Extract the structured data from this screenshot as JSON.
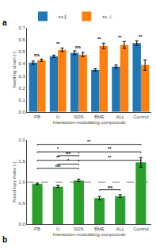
{
  "chart_data": [
    {
      "type": "bar",
      "xlabel": "Interaction-modulating compounds",
      "ylabel": "Swelling strain (-)",
      "categories": [
        "PB",
        "U",
        "SDS",
        "BME",
        "ALL",
        "Control"
      ],
      "series": [
        {
          "name": "εs,∥",
          "values": [
            0.41,
            0.463,
            0.492,
            0.35,
            0.377,
            0.572
          ],
          "errors": [
            0.013,
            0.01,
            0.016,
            0.01,
            0.013,
            0.02
          ]
        },
        {
          "name": "εs,⊥",
          "values": [
            0.43,
            0.517,
            0.477,
            0.55,
            0.558,
            0.39
          ],
          "errors": [
            0.01,
            0.015,
            0.018,
            0.022,
            0.028,
            0.043
          ]
        }
      ],
      "ylim": [
        0.0,
        0.7
      ],
      "yticks": [
        {
          "value": 0.0,
          "label": "0.0"
        },
        0.1,
        0.2,
        0.3,
        0.4,
        0.5,
        0.6,
        0.7
      ],
      "grid": false,
      "legend": "upper left",
      "annotations": [
        {
          "category": "PB",
          "text": "ns"
        },
        {
          "category": "U",
          "text": "**"
        },
        {
          "category": "SDS",
          "text": "ns"
        },
        {
          "category": "BME",
          "text": "**"
        },
        {
          "category": "ALL",
          "text": "**"
        },
        {
          "category": "Control",
          "text": "**"
        }
      ],
      "panel_label": "a"
    },
    {
      "type": "bar",
      "xlabel": "Interaction-modulating compounds",
      "ylabel": "Anisotropy index (-)",
      "categories": [
        "PB",
        "U",
        "SDS",
        "BME",
        "ALL",
        "Control"
      ],
      "values": [
        0.96,
        0.895,
        1.04,
        0.62,
        0.665,
        1.47
      ],
      "errors": [
        0.022,
        0.028,
        0.032,
        0.038,
        0.038,
        0.115
      ],
      "ylim": [
        0.0,
        2.0
      ],
      "yticks": [
        {
          "value": 0.0,
          "label": "0.0"
        },
        0.5,
        {
          "value": 1.0,
          "label": "1.0"
        },
        1.5,
        {
          "value": 2.0,
          "label": "2.0"
        }
      ],
      "grid": false,
      "reference_lines": [
        {
          "y": 1.0,
          "line_style": "dashed"
        }
      ],
      "brackets": [
        {
          "x1": "PB",
          "x2": "Control",
          "y": 1.9,
          "label": "**"
        },
        {
          "x1": "PB",
          "x2": "SDS",
          "y": 1.72,
          "label": "*"
        },
        {
          "x1": "U",
          "x2": "SDS",
          "y": 1.63,
          "label": "ns"
        },
        {
          "x1": "SDS",
          "x2": "Control",
          "y": 1.72,
          "label": "**"
        },
        {
          "x1": "PB",
          "x2": "SDS",
          "y": 1.52,
          "label": "**"
        },
        {
          "x1": "U",
          "x2": "SDS",
          "y": 1.43,
          "label": "*"
        },
        {
          "x1": "SDS",
          "x2": "Control",
          "y": 1.52,
          "label": "**"
        },
        {
          "x1": "PB",
          "x2": "SDS",
          "y": 1.33,
          "label": "ns"
        },
        {
          "x1": "BME",
          "x2": "ALL",
          "y": 0.82,
          "label": "ns"
        }
      ],
      "panel_label": "b"
    }
  ]
}
